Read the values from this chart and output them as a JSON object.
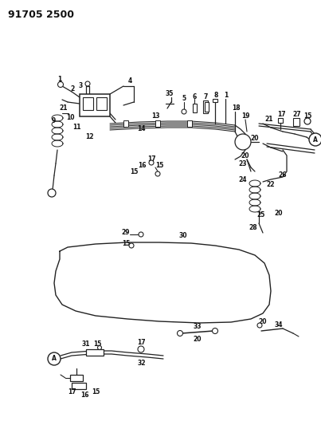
{
  "title": "91705 2500",
  "bg_color": "#ffffff",
  "line_color": "#222222",
  "text_color": "#111111",
  "label_fontsize": 5.5,
  "title_fontsize": 9,
  "fig_width": 4.03,
  "fig_height": 5.33,
  "dpi": 100
}
